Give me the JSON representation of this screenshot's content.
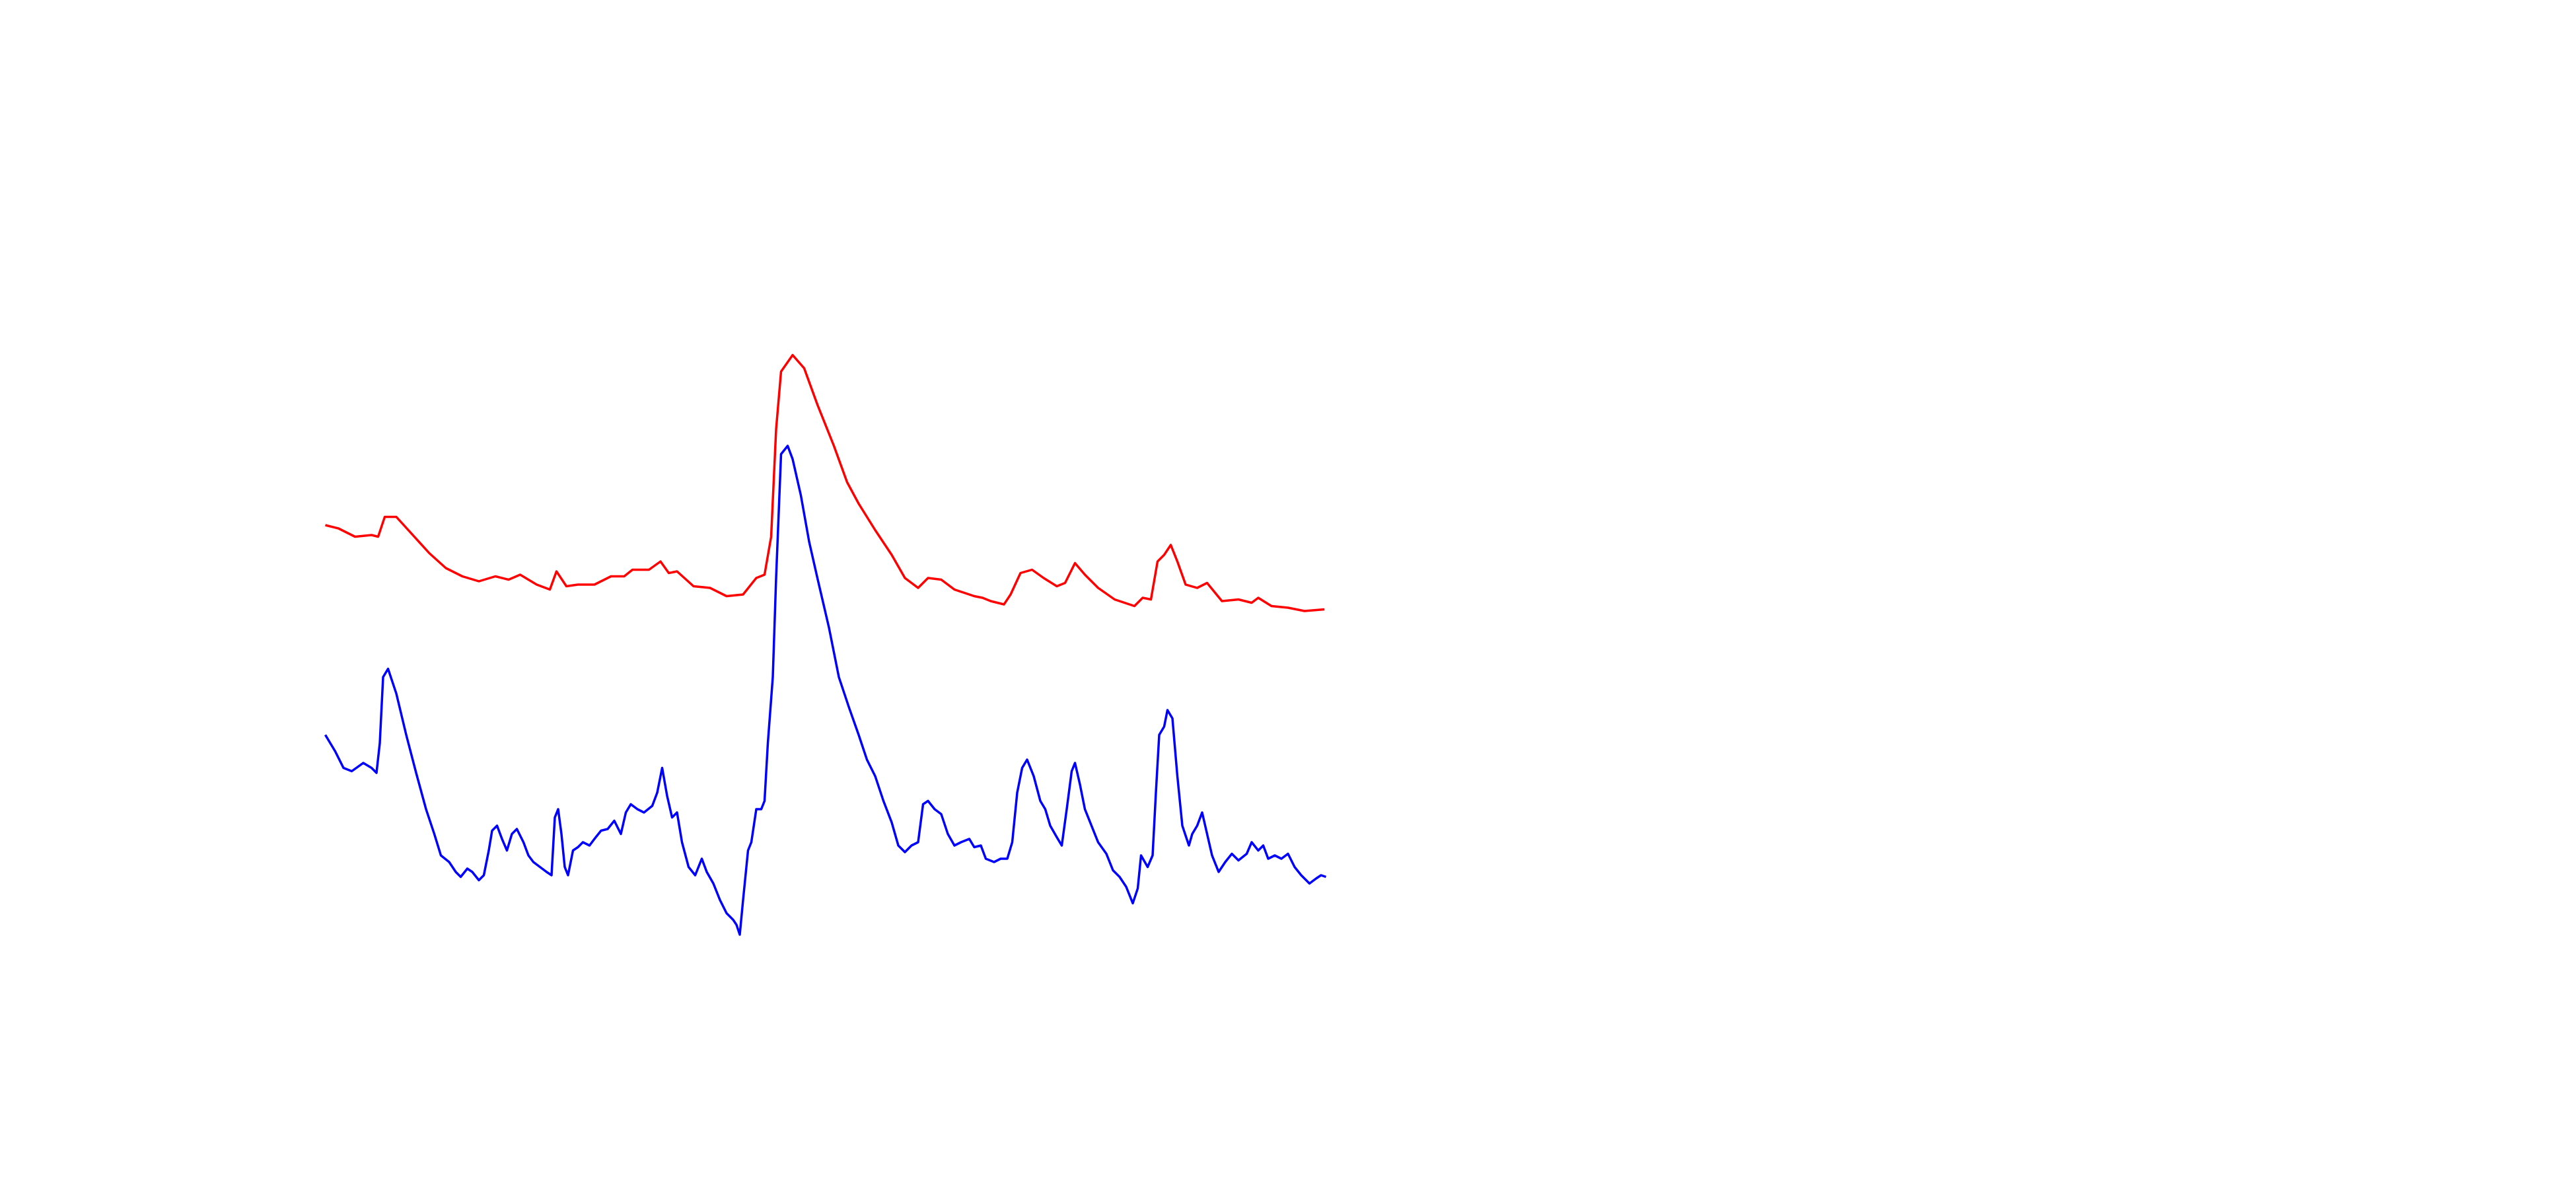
{
  "chart_data": {
    "type": "line",
    "xlim": [
      0,
      606
    ],
    "ylim": [
      0,
      720
    ],
    "series": [
      {
        "color": "#ff0000",
        "x": [
          0,
          8,
          18,
          28,
          32,
          36,
          43,
          53,
          63,
          73,
          83,
          93,
          103,
          111,
          118,
          128,
          136,
          140,
          146,
          153,
          163,
          173,
          181,
          186,
          196,
          203,
          208,
          213,
          223,
          233,
          243,
          253,
          261,
          266,
          270,
          273,
          276,
          283,
          290,
          298,
          308,
          316,
          323,
          333,
          343,
          351,
          359,
          365,
          373,
          381,
          393,
          398,
          403,
          411,
          415,
          421,
          428,
          435,
          443,
          448,
          454,
          460,
          468,
          478,
          490,
          495,
          500,
          504,
          508,
          512,
          516,
          521,
          528,
          534,
          543,
          553,
          561,
          565,
          573,
          583,
          593,
          605
        ],
        "values": [
          402,
          400,
          395,
          396,
          395,
          407,
          407,
          396,
          385,
          376,
          371,
          368,
          371,
          369,
          372,
          366,
          363,
          374,
          365,
          366,
          366,
          371,
          371,
          375,
          375,
          380,
          373,
          374,
          365,
          364,
          359,
          360,
          370,
          372,
          395,
          460,
          495,
          505,
          497,
          475,
          450,
          428,
          415,
          399,
          384,
          370,
          364,
          370,
          369,
          363,
          359,
          358,
          356,
          354,
          360,
          373,
          375,
          370,
          365,
          367,
          379,
          372,
          364,
          357,
          353,
          358,
          357,
          380,
          384,
          390,
          380,
          366,
          364,
          367,
          356,
          357,
          355,
          358,
          353,
          352,
          350,
          351
        ]
      },
      {
        "color": "#0000ff",
        "x": [
          0,
          6,
          11,
          16,
          23,
          28,
          31,
          33,
          35,
          38,
          43,
          49,
          55,
          61,
          66,
          70,
          75,
          79,
          82,
          86,
          89,
          93,
          96,
          99,
          101,
          104,
          107,
          110,
          113,
          116,
          120,
          123,
          126,
          130,
          134,
          137,
          139,
          141,
          143,
          145,
          147,
          150,
          153,
          156,
          160,
          163,
          167,
          171,
          175,
          179,
          182,
          185,
          189,
          193,
          198,
          201,
          204,
          207,
          210,
          213,
          216,
          220,
          224,
          228,
          231,
          235,
          239,
          243,
          247,
          249,
          251,
          253,
          256,
          258,
          261,
          264,
          266,
          268,
          271,
          273,
          276,
          280,
          283,
          288,
          293,
          298,
          305,
          311,
          317,
          323,
          328,
          333,
          338,
          343,
          347,
          351,
          355,
          359,
          362,
          365,
          369,
          373,
          377,
          381,
          385,
          390,
          393,
          397,
          400,
          405,
          409,
          413,
          416,
          419,
          422,
          425,
          429,
          433,
          436,
          439,
          443,
          446,
          449,
          452,
          454,
          457,
          460,
          464,
          468,
          473,
          477,
          481,
          485,
          489,
          492,
          494,
          498,
          501,
          503,
          505,
          508,
          510,
          513,
          516,
          519,
          523,
          525,
          528,
          531,
          534,
          537,
          541,
          545,
          549,
          553,
          558,
          561,
          565,
          568,
          571,
          575,
          579,
          583,
          587,
          591,
          596,
          600,
          603,
          606
        ],
        "values": [
          275,
          265,
          255,
          253,
          258,
          255,
          252,
          270,
          310,
          315,
          300,
          275,
          252,
          230,
          215,
          202,
          198,
          192,
          189,
          194,
          192,
          187,
          190,
          205,
          217,
          220,
          212,
          205,
          215,
          218,
          210,
          202,
          198,
          195,
          192,
          190,
          225,
          230,
          215,
          195,
          190,
          205,
          207,
          210,
          208,
          212,
          217,
          218,
          223,
          215,
          228,
          233,
          230,
          228,
          232,
          240,
          255,
          238,
          225,
          228,
          210,
          195,
          190,
          200,
          192,
          185,
          175,
          167,
          163,
          160,
          154,
          175,
          205,
          210,
          230,
          230,
          235,
          270,
          310,
          370,
          445,
          450,
          442,
          420,
          392,
          370,
          340,
          310,
          292,
          275,
          260,
          250,
          235,
          222,
          208,
          204,
          208,
          210,
          233,
          235,
          230,
          227,
          215,
          208,
          210,
          212,
          207,
          208,
          200,
          198,
          200,
          200,
          210,
          240,
          255,
          260,
          250,
          235,
          230,
          220,
          213,
          208,
          230,
          253,
          258,
          245,
          230,
          220,
          210,
          203,
          193,
          189,
          183,
          173,
          182,
          202,
          195,
          202,
          240,
          275,
          280,
          290,
          285,
          250,
          220,
          208,
          215,
          220,
          228,
          215,
          202,
          192,
          198,
          203,
          199,
          203,
          210,
          205,
          208,
          200,
          202,
          200,
          203,
          195,
          190,
          185,
          188,
          190,
          189
        ]
      }
    ]
  }
}
